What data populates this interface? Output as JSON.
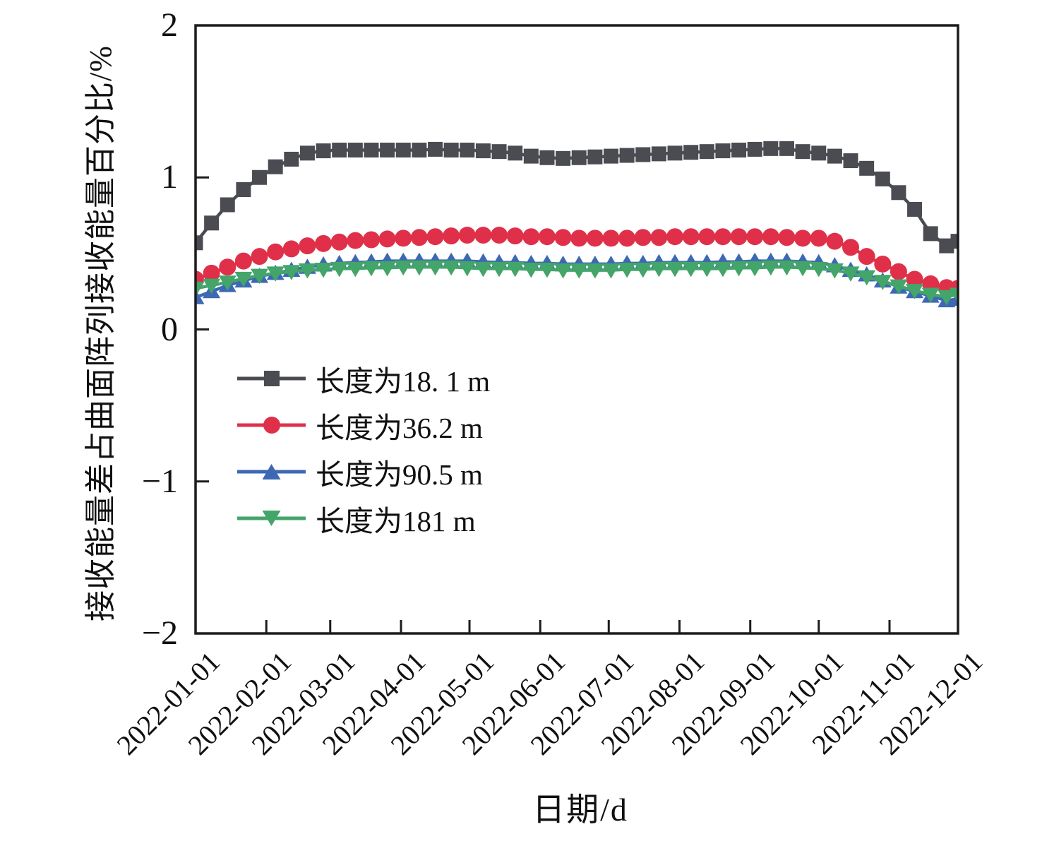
{
  "chart_data": {
    "type": "line",
    "title": "",
    "xlabel": "日期/d",
    "ylabel": "接收能量差占曲面阵列接收能量百分比/%",
    "grid": false,
    "legend_position": "center-left-inside",
    "ylim": [
      -2,
      2
    ],
    "y_ticks": [
      2,
      1,
      0,
      -1,
      -2
    ],
    "y_tick_labels": [
      "2",
      "1",
      "0",
      "−1",
      "−2"
    ],
    "x_tick_days": [
      0,
      31,
      59,
      90,
      120,
      151,
      181,
      212,
      243,
      273,
      304,
      334
    ],
    "x_tick_labels": [
      "2022-01-01",
      "2022-02-01",
      "2022-03-01",
      "2022-04-01",
      "2022-05-01",
      "2022-06-01",
      "2022-07-01",
      "2022-08-01",
      "2022-09-01",
      "2022-10-01",
      "2022-11-01",
      "2022-12-01"
    ],
    "x_range_days": [
      0,
      334
    ],
    "x_days": [
      0,
      7,
      14,
      21,
      28,
      35,
      42,
      49,
      56,
      63,
      70,
      77,
      84,
      91,
      98,
      105,
      112,
      119,
      126,
      133,
      140,
      147,
      154,
      161,
      168,
      175,
      182,
      189,
      196,
      203,
      210,
      217,
      224,
      231,
      238,
      245,
      252,
      259,
      266,
      273,
      280,
      287,
      294,
      301,
      308,
      315,
      322,
      329,
      334
    ],
    "series": [
      {
        "name": "长度为18. 1 m",
        "marker": "square",
        "color": "#4a4c52",
        "values": [
          0.57,
          0.7,
          0.82,
          0.92,
          1.0,
          1.07,
          1.12,
          1.16,
          1.175,
          1.18,
          1.18,
          1.18,
          1.18,
          1.18,
          1.18,
          1.185,
          1.18,
          1.18,
          1.175,
          1.17,
          1.16,
          1.14,
          1.13,
          1.125,
          1.13,
          1.135,
          1.14,
          1.145,
          1.15,
          1.155,
          1.16,
          1.165,
          1.17,
          1.175,
          1.18,
          1.185,
          1.19,
          1.19,
          1.17,
          1.16,
          1.14,
          1.11,
          1.06,
          0.99,
          0.9,
          0.79,
          0.63,
          0.55,
          0.58
        ]
      },
      {
        "name": "长度为36.2 m",
        "marker": "circle",
        "color": "#e03049",
        "values": [
          0.33,
          0.37,
          0.41,
          0.45,
          0.48,
          0.51,
          0.53,
          0.55,
          0.565,
          0.575,
          0.585,
          0.59,
          0.595,
          0.6,
          0.605,
          0.61,
          0.615,
          0.62,
          0.62,
          0.62,
          0.615,
          0.61,
          0.61,
          0.605,
          0.6,
          0.6,
          0.6,
          0.6,
          0.605,
          0.605,
          0.61,
          0.61,
          0.61,
          0.61,
          0.61,
          0.61,
          0.61,
          0.605,
          0.6,
          0.6,
          0.58,
          0.54,
          0.48,
          0.43,
          0.38,
          0.33,
          0.3,
          0.275,
          0.27
        ]
      },
      {
        "name": "长度为90.5 m",
        "marker": "triangle-up",
        "color": "#3d68b4",
        "values": [
          0.21,
          0.25,
          0.29,
          0.32,
          0.35,
          0.37,
          0.39,
          0.41,
          0.425,
          0.435,
          0.44,
          0.445,
          0.45,
          0.45,
          0.45,
          0.45,
          0.45,
          0.45,
          0.445,
          0.44,
          0.44,
          0.435,
          0.435,
          0.43,
          0.43,
          0.43,
          0.43,
          0.435,
          0.435,
          0.44,
          0.44,
          0.44,
          0.44,
          0.445,
          0.445,
          0.45,
          0.45,
          0.45,
          0.445,
          0.44,
          0.42,
          0.39,
          0.36,
          0.32,
          0.28,
          0.25,
          0.22,
          0.19,
          0.2
        ]
      },
      {
        "name": "长度为181 m",
        "marker": "triangle-down",
        "color": "#43a569",
        "values": [
          0.27,
          0.29,
          0.31,
          0.335,
          0.355,
          0.37,
          0.38,
          0.39,
          0.395,
          0.4,
          0.4,
          0.405,
          0.405,
          0.41,
          0.41,
          0.41,
          0.41,
          0.405,
          0.4,
          0.4,
          0.4,
          0.395,
          0.395,
          0.39,
          0.39,
          0.39,
          0.39,
          0.395,
          0.395,
          0.4,
          0.4,
          0.4,
          0.4,
          0.4,
          0.405,
          0.405,
          0.41,
          0.41,
          0.405,
          0.4,
          0.39,
          0.37,
          0.345,
          0.315,
          0.285,
          0.255,
          0.23,
          0.215,
          0.23
        ]
      }
    ],
    "axis_color": "#1c1c1c"
  }
}
